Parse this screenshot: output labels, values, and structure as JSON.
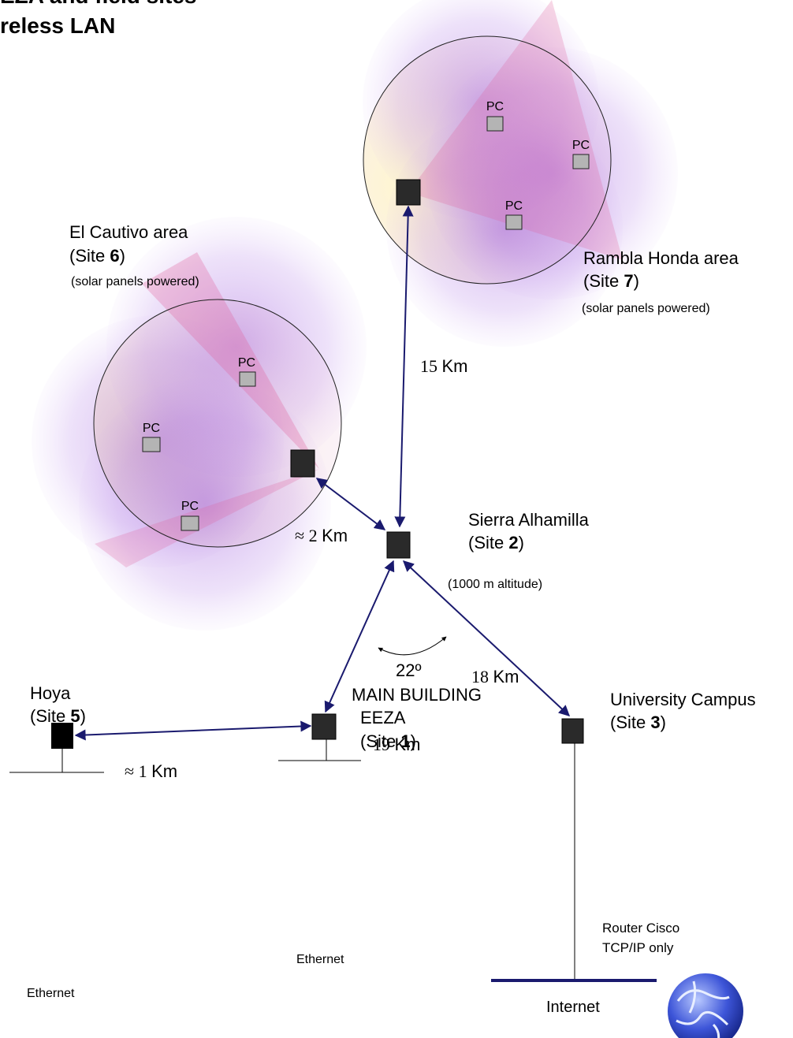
{
  "title": [
    "EZA and field sites",
    "reless LAN"
  ],
  "site6": {
    "name": "El Cautivo area",
    "site": [
      "(Site ",
      "6",
      ")"
    ],
    "note": "(solar panels powered)"
  },
  "site7": {
    "name": "Rambla Honda area",
    "site": [
      "(Site ",
      "7",
      ")"
    ],
    "note": "(solar panels powered)"
  },
  "site2": {
    "name": "Sierra Alhamilla",
    "site": [
      "(Site ",
      "2",
      ")"
    ],
    "note": "(1000 m altitude)"
  },
  "site5": {
    "name": "Hoya",
    "site": [
      "(Site ",
      "5",
      ")"
    ],
    "network": "Ethernet"
  },
  "site1": {
    "name": [
      "MAIN BUILDING",
      "EEZA"
    ],
    "site": [
      "(Site ",
      "1",
      ")"
    ],
    "network": "Ethernet"
  },
  "site3": {
    "name": "University Campus",
    "site": [
      "(Site ",
      "3",
      ")"
    ],
    "router": [
      "Router Cisco",
      "TCP/IP only"
    ],
    "network": "Internet"
  },
  "pcs": [
    "PC",
    "PC",
    "PC",
    "PC",
    "PC",
    "PC"
  ],
  "links": {
    "site7_site2": [
      "15 ",
      "Km"
    ],
    "site6_site2": [
      "≈ 2 ",
      "Km"
    ],
    "site2_site3": [
      "18 ",
      "Km"
    ],
    "site2_site1": [
      "19 ",
      "Km"
    ],
    "site5_site1": [
      "≈ 1 ",
      "Km"
    ]
  },
  "angle": "22º"
}
